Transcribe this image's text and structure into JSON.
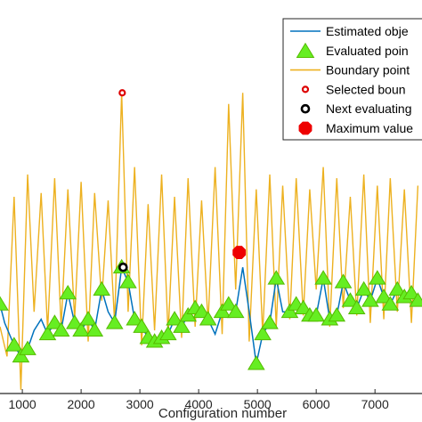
{
  "chart_data": {
    "type": "line",
    "title": "",
    "xlabel": "Configuration number",
    "ylabel": "",
    "xlim": [
      620,
      7800
    ],
    "ylim": [
      -0.06,
      1.0
    ],
    "grid": false,
    "legend_position": "top-right",
    "x_ticks": [
      1000,
      2000,
      3000,
      4000,
      5000,
      6000,
      7000
    ],
    "x_tick_labels": [
      "1000",
      "2000",
      "3000",
      "4000",
      "5000",
      "6000",
      "7000"
    ],
    "colors": {
      "estimated": "#0072bd",
      "evaluated_fill": "#66ee22",
      "evaluated_edge": "#55bb00",
      "boundary": "#edb120",
      "selected": "#dd0000",
      "next": "#000000",
      "maximum": "#ee0000",
      "axes": "#262626"
    },
    "legend": [
      {
        "label": "Estimated obje",
        "marker": "line",
        "color": "#0072bd"
      },
      {
        "label": "Evaluated poin",
        "marker": "triangle",
        "color": "#66ee22"
      },
      {
        "label": "Boundary point",
        "marker": "line",
        "color": "#edb120"
      },
      {
        "label": "Selected boun",
        "marker": "ring",
        "color": "#dd0000"
      },
      {
        "label": "Next evaluating",
        "marker": "ring",
        "color": "#000000"
      },
      {
        "label": "Maximum value",
        "marker": "octagon",
        "color": "#ee0000"
      }
    ],
    "series": [
      {
        "name": "Boundary points",
        "type": "zigzag",
        "x": [
          620,
          740,
          860,
          975,
          1090,
          1200,
          1320,
          1430,
          1550,
          1660,
          1775,
          1890,
          2000,
          2120,
          2230,
          2350,
          2460,
          2570,
          2690,
          2800,
          2910,
          3030,
          3140,
          3250,
          3370,
          3480,
          3590,
          3710,
          3820,
          3940,
          4050,
          4160,
          4280,
          4400,
          4510,
          4630,
          4750,
          4860,
          4980,
          5090,
          5210,
          5320,
          5430,
          5550,
          5660,
          5780,
          5890,
          6000,
          6120,
          6230,
          6350,
          6460,
          6580,
          6690,
          6810,
          6920,
          7040,
          7150,
          7260,
          7380,
          7500,
          7620,
          7730
        ],
        "y": [
          0.12,
          0.04,
          0.47,
          -0.05,
          0.53,
          0.16,
          0.48,
          0.11,
          0.52,
          0.12,
          0.49,
          0.14,
          0.51,
          0.08,
          0.48,
          0.19,
          0.46,
          0.13,
          0.75,
          0.16,
          0.55,
          0.07,
          0.45,
          0.11,
          0.53,
          0.1,
          0.47,
          0.09,
          0.52,
          0.12,
          0.46,
          0.13,
          0.55,
          0.1,
          0.72,
          0.22,
          0.75,
          0.08,
          0.49,
          0.1,
          0.53,
          0.12,
          0.5,
          0.14,
          0.52,
          0.15,
          0.49,
          0.22,
          0.55,
          0.12,
          0.52,
          0.17,
          0.47,
          0.15,
          0.53,
          0.13,
          0.5,
          0.14,
          0.52,
          0.16,
          0.49,
          0.13,
          0.5
        ]
      },
      {
        "name": "Estimated objective",
        "type": "line",
        "x": [
          620,
          700,
          860,
          975,
          1090,
          1200,
          1320,
          1430,
          1550,
          1660,
          1775,
          1890,
          2000,
          2120,
          2230,
          2350,
          2460,
          2570,
          2690,
          2800,
          2910,
          3030,
          3140,
          3250,
          3370,
          3480,
          3590,
          3710,
          3820,
          3940,
          4050,
          4160,
          4280,
          4400,
          4510,
          4630,
          4750,
          4860,
          4980,
          5090,
          5210,
          5320,
          5430,
          5550,
          5660,
          5780,
          5890,
          6000,
          6120,
          6230,
          6350,
          6460,
          6580,
          6690,
          6810,
          6920,
          7040,
          7150,
          7260,
          7380,
          7500,
          7620,
          7730
        ],
        "y": [
          0.18,
          0.13,
          0.07,
          0.04,
          0.06,
          0.11,
          0.14,
          0.1,
          0.13,
          0.11,
          0.21,
          0.13,
          0.11,
          0.14,
          0.11,
          0.22,
          0.16,
          0.13,
          0.28,
          0.24,
          0.14,
          0.12,
          0.09,
          0.08,
          0.09,
          0.1,
          0.14,
          0.12,
          0.15,
          0.17,
          0.16,
          0.14,
          0.1,
          0.16,
          0.18,
          0.16,
          0.28,
          0.16,
          0.02,
          0.1,
          0.13,
          0.25,
          0.16,
          0.16,
          0.18,
          0.17,
          0.15,
          0.15,
          0.25,
          0.14,
          0.15,
          0.24,
          0.19,
          0.17,
          0.22,
          0.19,
          0.25,
          0.2,
          0.18,
          0.22,
          0.2,
          0.21,
          0.19
        ]
      },
      {
        "name": "Evaluated points",
        "type": "scatter",
        "x": [
          620,
          860,
          975,
          1090,
          1430,
          1550,
          1660,
          1775,
          1890,
          2000,
          2120,
          2230,
          2350,
          2570,
          2690,
          2800,
          2910,
          3030,
          3140,
          3250,
          3370,
          3480,
          3590,
          3710,
          3820,
          3940,
          4050,
          4160,
          4400,
          4510,
          4630,
          4980,
          5090,
          5210,
          5320,
          5550,
          5660,
          5780,
          5890,
          6000,
          6120,
          6230,
          6350,
          6460,
          6580,
          6690,
          6810,
          6920,
          7040,
          7150,
          7260,
          7380,
          7500,
          7620,
          7730
        ],
        "y": [
          0.18,
          0.07,
          0.04,
          0.06,
          0.1,
          0.13,
          0.11,
          0.21,
          0.13,
          0.11,
          0.14,
          0.11,
          0.22,
          0.13,
          0.28,
          0.24,
          0.14,
          0.12,
          0.09,
          0.08,
          0.09,
          0.1,
          0.14,
          0.12,
          0.15,
          0.17,
          0.16,
          0.14,
          0.16,
          0.18,
          0.16,
          0.02,
          0.1,
          0.13,
          0.25,
          0.16,
          0.18,
          0.17,
          0.15,
          0.15,
          0.25,
          0.14,
          0.15,
          0.24,
          0.19,
          0.17,
          0.22,
          0.19,
          0.25,
          0.2,
          0.18,
          0.22,
          0.2,
          0.21,
          0.19
        ]
      },
      {
        "name": "Selected boundary point",
        "type": "scatter",
        "x": [
          2700
        ],
        "y": [
          0.75
        ]
      },
      {
        "name": "Next evaluating point",
        "type": "scatter",
        "x": [
          2715
        ],
        "y": [
          0.28
        ]
      },
      {
        "name": "Maximum value",
        "type": "scatter",
        "x": [
          4690
        ],
        "y": [
          0.32
        ]
      }
    ]
  }
}
